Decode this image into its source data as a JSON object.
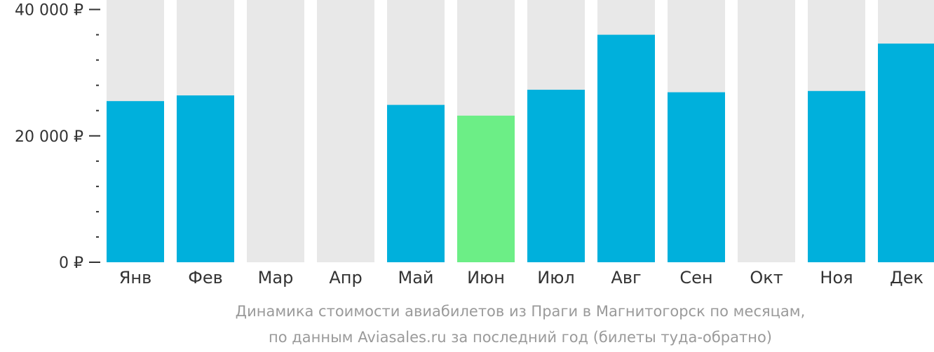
{
  "colors": {
    "bar": "#00b0dc",
    "bar_highlight": "#6cee86",
    "background_column": "#e8e8e8",
    "axis": "#333333",
    "caption": "#9a9a9a"
  },
  "chart_data": {
    "type": "bar",
    "categories": [
      "Янв",
      "Фев",
      "Мар",
      "Апр",
      "Май",
      "Июн",
      "Июл",
      "Авг",
      "Сен",
      "Окт",
      "Ноя",
      "Дек"
    ],
    "values": [
      25500,
      26400,
      null,
      null,
      24900,
      23200,
      27300,
      36000,
      26900,
      null,
      27100,
      34600
    ],
    "highlight_category": "Июн",
    "ylim": [
      0,
      41500
    ],
    "yticks": [
      {
        "value": 0,
        "label": "0 ₽"
      },
      {
        "value": 20000,
        "label": "20 000 ₽"
      },
      {
        "value": 40000,
        "label": "40 000 ₽"
      }
    ],
    "minor_tick_step": 4000,
    "title": "",
    "xlabel": "",
    "ylabel": ""
  },
  "caption": {
    "line1": "Динамика стоимости авиабилетов из Праги в Магнитогорск по месяцам,",
    "line2": "по данным Aviasales.ru за последний год (билеты туда-обратно)"
  }
}
